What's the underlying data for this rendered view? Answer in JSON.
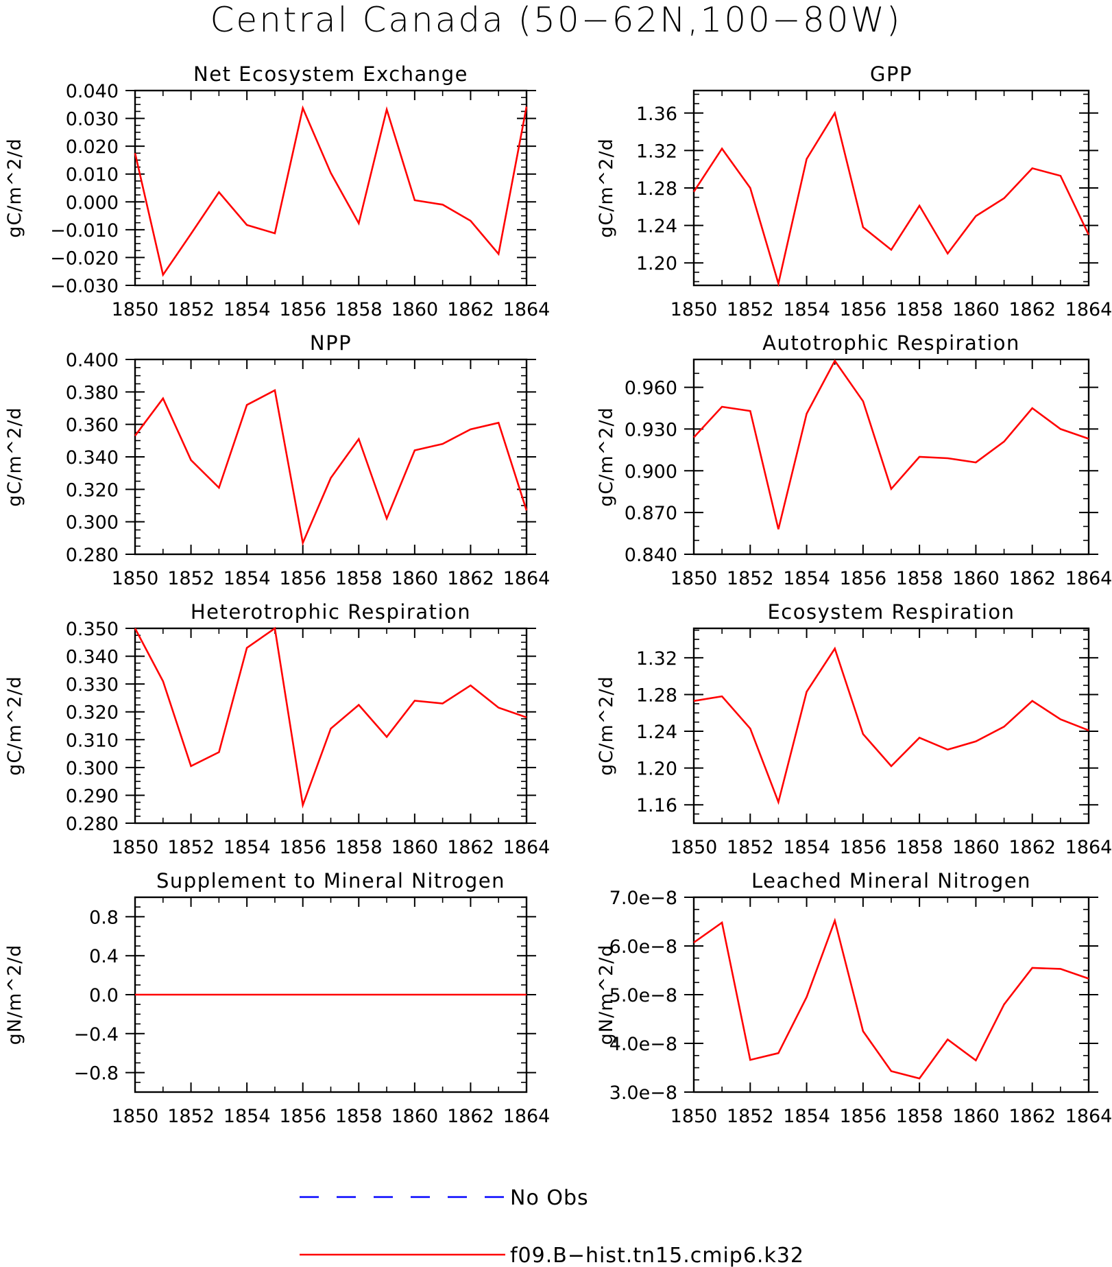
{
  "figure": {
    "title": "Central Canada (50-62N,100-80W)"
  },
  "legend": [
    {
      "label": "No Obs",
      "color": "#0000ff",
      "style": "dashed"
    },
    {
      "label": "f09.B-hist.tn15.cmip6.k32",
      "color": "#ff0000",
      "style": "solid"
    }
  ],
  "chart_data": [
    {
      "type": "line",
      "title": "Net Ecosystem Exchange",
      "ylabel": "gC/m^2/d",
      "xlim": [
        1850,
        1864
      ],
      "ylim": [
        -0.03,
        0.04
      ],
      "yticks": [
        -0.03,
        -0.02,
        -0.01,
        0.0,
        0.01,
        0.02,
        0.03,
        0.04
      ],
      "ytick_labels": [
        "-0.030",
        "-0.020",
        "-0.010",
        "0.000",
        "0.010",
        "0.020",
        "0.030",
        "0.040"
      ],
      "xticks": [
        1850,
        1852,
        1854,
        1856,
        1858,
        1860,
        1862,
        1864
      ],
      "x": [
        1850,
        1851,
        1852,
        1853,
        1854,
        1855,
        1856,
        1857,
        1858,
        1859,
        1860,
        1861,
        1862,
        1863,
        1864
      ],
      "series": [
        {
          "name": "f09.B-hist.tn15.cmip6.k32",
          "color": "#ff0000",
          "values": [
            0.0175,
            -0.0262,
            -0.0115,
            0.0035,
            -0.0083,
            -0.0113,
            0.0337,
            0.0104,
            -0.0077,
            0.0332,
            0.0006,
            -0.001,
            -0.0068,
            -0.0187,
            0.0342
          ]
        }
      ]
    },
    {
      "type": "line",
      "title": "GPP",
      "ylabel": "gC/m^2/d",
      "xlim": [
        1850,
        1864
      ],
      "ylim": [
        1.176,
        1.384
      ],
      "yticks": [
        1.2,
        1.24,
        1.28,
        1.32,
        1.36
      ],
      "ytick_labels": [
        "1.20",
        "1.24",
        "1.28",
        "1.32",
        "1.36"
      ],
      "xticks": [
        1850,
        1852,
        1854,
        1856,
        1858,
        1860,
        1862,
        1864
      ],
      "x": [
        1850,
        1851,
        1852,
        1853,
        1854,
        1855,
        1856,
        1857,
        1858,
        1859,
        1860,
        1861,
        1862,
        1863,
        1864
      ],
      "series": [
        {
          "name": "f09.B-hist.tn15.cmip6.k32",
          "color": "#ff0000",
          "values": [
            1.276,
            1.322,
            1.28,
            1.178,
            1.311,
            1.36,
            1.238,
            1.214,
            1.261,
            1.21,
            1.25,
            1.269,
            1.301,
            1.293,
            1.23
          ]
        }
      ]
    },
    {
      "type": "line",
      "title": "NPP",
      "ylabel": "gC/m^2/d",
      "xlim": [
        1850,
        1864
      ],
      "ylim": [
        0.28,
        0.4
      ],
      "yticks": [
        0.28,
        0.3,
        0.32,
        0.34,
        0.36,
        0.38,
        0.4
      ],
      "ytick_labels": [
        "0.280",
        "0.300",
        "0.320",
        "0.340",
        "0.360",
        "0.380",
        "0.400"
      ],
      "xticks": [
        1850,
        1852,
        1854,
        1856,
        1858,
        1860,
        1862,
        1864
      ],
      "x": [
        1850,
        1851,
        1852,
        1853,
        1854,
        1855,
        1856,
        1857,
        1858,
        1859,
        1860,
        1861,
        1862,
        1863,
        1864
      ],
      "series": [
        {
          "name": "f09.B-hist.tn15.cmip6.k32",
          "color": "#ff0000",
          "values": [
            0.353,
            0.376,
            0.338,
            0.321,
            0.372,
            0.381,
            0.287,
            0.327,
            0.351,
            0.302,
            0.344,
            0.348,
            0.357,
            0.361,
            0.307
          ]
        }
      ]
    },
    {
      "type": "line",
      "title": "Autotrophic Respiration",
      "ylabel": "gC/m^2/d",
      "xlim": [
        1850,
        1864
      ],
      "ylim": [
        0.84,
        0.98
      ],
      "yticks": [
        0.84,
        0.87,
        0.9,
        0.93,
        0.96
      ],
      "ytick_labels": [
        "0.840",
        "0.870",
        "0.900",
        "0.930",
        "0.960"
      ],
      "xticks": [
        1850,
        1852,
        1854,
        1856,
        1858,
        1860,
        1862,
        1864
      ],
      "x": [
        1850,
        1851,
        1852,
        1853,
        1854,
        1855,
        1856,
        1857,
        1858,
        1859,
        1860,
        1861,
        1862,
        1863,
        1864
      ],
      "series": [
        {
          "name": "f09.B-hist.tn15.cmip6.k32",
          "color": "#ff0000",
          "values": [
            0.924,
            0.946,
            0.943,
            0.858,
            0.941,
            0.979,
            0.95,
            0.887,
            0.91,
            0.909,
            0.906,
            0.921,
            0.945,
            0.93,
            0.923
          ]
        }
      ]
    },
    {
      "type": "line",
      "title": "Heterotrophic Respiration",
      "ylabel": "gC/m^2/d",
      "xlim": [
        1850,
        1864
      ],
      "ylim": [
        0.28,
        0.35
      ],
      "yticks": [
        0.28,
        0.29,
        0.3,
        0.31,
        0.32,
        0.33,
        0.34,
        0.35
      ],
      "ytick_labels": [
        "0.280",
        "0.290",
        "0.300",
        "0.310",
        "0.320",
        "0.330",
        "0.340",
        "0.350"
      ],
      "xticks": [
        1850,
        1852,
        1854,
        1856,
        1858,
        1860,
        1862,
        1864
      ],
      "x": [
        1850,
        1851,
        1852,
        1853,
        1854,
        1855,
        1856,
        1857,
        1858,
        1859,
        1860,
        1861,
        1862,
        1863,
        1864
      ],
      "series": [
        {
          "name": "f09.B-hist.tn15.cmip6.k32",
          "color": "#ff0000",
          "values": [
            0.35,
            0.331,
            0.3005,
            0.3055,
            0.343,
            0.35,
            0.2865,
            0.314,
            0.3225,
            0.311,
            0.324,
            0.323,
            0.3295,
            0.3215,
            0.318
          ]
        }
      ]
    },
    {
      "type": "line",
      "title": "Ecosystem Respiration",
      "ylabel": "gC/m^2/d",
      "xlim": [
        1850,
        1864
      ],
      "ylim": [
        1.14,
        1.352
      ],
      "yticks": [
        1.16,
        1.2,
        1.24,
        1.28,
        1.32
      ],
      "ytick_labels": [
        "1.16",
        "1.20",
        "1.24",
        "1.28",
        "1.32"
      ],
      "xticks": [
        1850,
        1852,
        1854,
        1856,
        1858,
        1860,
        1862,
        1864
      ],
      "x": [
        1850,
        1851,
        1852,
        1853,
        1854,
        1855,
        1856,
        1857,
        1858,
        1859,
        1860,
        1861,
        1862,
        1863,
        1864
      ],
      "series": [
        {
          "name": "f09.B-hist.tn15.cmip6.k32",
          "color": "#ff0000",
          "values": [
            1.273,
            1.278,
            1.243,
            1.163,
            1.283,
            1.33,
            1.237,
            1.202,
            1.233,
            1.22,
            1.229,
            1.245,
            1.273,
            1.253,
            1.241
          ]
        }
      ]
    },
    {
      "type": "line",
      "title": "Supplement to Mineral Nitrogen",
      "ylabel": "gN/m^2/d",
      "xlim": [
        1850,
        1864
      ],
      "ylim": [
        -1.0,
        1.0
      ],
      "yticks": [
        -0.8,
        -0.4,
        0.0,
        0.4,
        0.8
      ],
      "ytick_labels": [
        "-0.8",
        "-0.4",
        "0.0",
        "0.4",
        "0.8"
      ],
      "xticks": [
        1850,
        1852,
        1854,
        1856,
        1858,
        1860,
        1862,
        1864
      ],
      "x": [
        1850,
        1851,
        1852,
        1853,
        1854,
        1855,
        1856,
        1857,
        1858,
        1859,
        1860,
        1861,
        1862,
        1863,
        1864
      ],
      "series": [
        {
          "name": "f09.B-hist.tn15.cmip6.k32",
          "color": "#ff0000",
          "values": [
            0,
            0,
            0,
            0,
            0,
            0,
            0,
            0,
            0,
            0,
            0,
            0,
            0,
            0,
            0
          ]
        }
      ]
    },
    {
      "type": "line",
      "title": "Leached Mineral Nitrogen",
      "ylabel": "gN/m^2/d",
      "xlim": [
        1850,
        1864
      ],
      "ylim": [
        3e-08,
        7e-08
      ],
      "yticks": [
        3e-08,
        4e-08,
        5e-08,
        6e-08,
        7e-08
      ],
      "ytick_labels": [
        "3.0e-8",
        "4.0e-8",
        "5.0e-8",
        "6.0e-8",
        "7.0e-8"
      ],
      "xticks": [
        1850,
        1852,
        1854,
        1856,
        1858,
        1860,
        1862,
        1864
      ],
      "x": [
        1850,
        1851,
        1852,
        1853,
        1854,
        1855,
        1856,
        1857,
        1858,
        1859,
        1860,
        1861,
        1862,
        1863,
        1864
      ],
      "series": [
        {
          "name": "f09.B-hist.tn15.cmip6.k32",
          "color": "#ff0000",
          "values": [
            6.07e-08,
            6.48e-08,
            3.66e-08,
            3.8e-08,
            4.95e-08,
            6.52e-08,
            4.25e-08,
            3.43e-08,
            3.28e-08,
            4.08e-08,
            3.65e-08,
            4.8e-08,
            5.55e-08,
            5.53e-08,
            5.33e-08
          ]
        }
      ]
    }
  ]
}
